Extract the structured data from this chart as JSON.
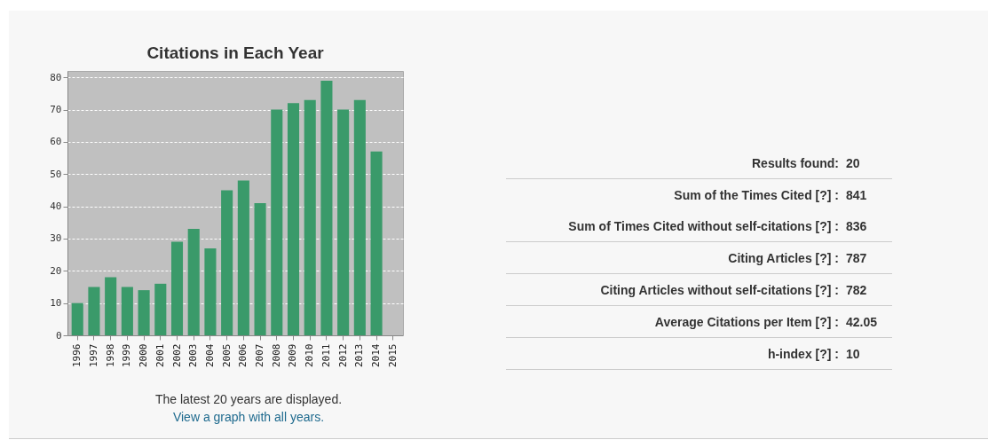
{
  "chart_data": [
    {
      "type": "bar",
      "title": "Citations in Each Year",
      "categories": [
        "1996",
        "1997",
        "1998",
        "1999",
        "2000",
        "2001",
        "2002",
        "2003",
        "2004",
        "2005",
        "2006",
        "2007",
        "2008",
        "2009",
        "2010",
        "2011",
        "2012",
        "2013",
        "2014",
        "2015"
      ],
      "values": [
        10,
        15,
        18,
        15,
        14,
        16,
        29,
        33,
        27,
        45,
        48,
        41,
        70,
        72,
        73,
        79,
        70,
        73,
        57,
        null
      ],
      "color": "#3a9a6a",
      "ylim": [
        0,
        82
      ],
      "yticks": [
        0,
        10,
        20,
        30,
        40,
        50,
        60,
        70,
        80
      ],
      "grid": "y",
      "annotations": [
        "The latest 20 years are displayed.",
        "View a graph with all years."
      ]
    },
    {
      "type": "other",
      "annotations": [
        "Results found: 20",
        "Sum of the Times Cited [?] : 841",
        "Sum of Times Cited without self-citations [?] : 836",
        "Citing Articles [?] : 787",
        "Citing Articles without self-citations [?] : 782",
        "Average Citations per Item [?] : 42.05",
        "h-index [?] : 10"
      ]
    }
  ]
}
